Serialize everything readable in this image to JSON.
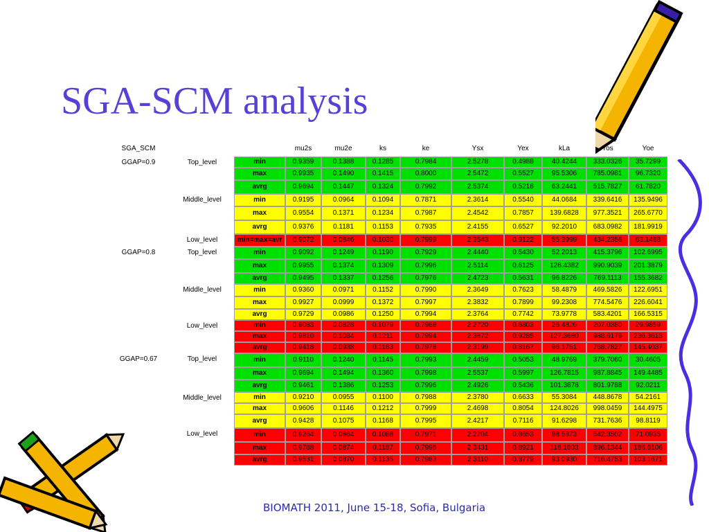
{
  "title": "SGA-SCM analysis",
  "footer": "BIOMATH 2011, June 15-18, Sofia, Bulgaria",
  "table": {
    "corner": "SGA_SCM",
    "columns": [
      "mu2s",
      "mu2e",
      "ks",
      "ke",
      "Ysx",
      "Yex",
      "kLa",
      "Yos",
      "Yoe"
    ],
    "colors": {
      "green": "#00e000",
      "yellow": "#ffff00",
      "red": "#ff0000"
    },
    "groups": [
      {
        "label": "GGAP=0.9",
        "levels": [
          {
            "name": "Top_level",
            "color": "green",
            "rows": [
              {
                "stat": "min",
                "values": [
                  "0.9359",
                  "0.1388",
                  "0.1285",
                  "0.7984",
                  "2.5278",
                  "0.4988",
                  "40.4244",
                  "333.0326",
                  "35.7299"
                ]
              },
              {
                "stat": "max",
                "values": [
                  "0.9935",
                  "0.1490",
                  "0.1415",
                  "0.8000",
                  "2.5472",
                  "0.5527",
                  "95.5306",
                  "785.0981",
                  "96.7320"
                ]
              },
              {
                "stat": "avrg",
                "values": [
                  "0.9694",
                  "0.1447",
                  "0.1324",
                  "0.7992",
                  "2.5374",
                  "0.5218",
                  "63.2441",
                  "515.7827",
                  "61.7820"
                ]
              }
            ]
          },
          {
            "name": "Middle_level",
            "color": "yellow",
            "rows": [
              {
                "stat": "min",
                "values": [
                  "0.9195",
                  "0.0964",
                  "0.1094",
                  "0.7871",
                  "2.3614",
                  "0.5540",
                  "44.0684",
                  "339.6416",
                  "135.9496"
                ]
              },
              {
                "stat": "max",
                "values": [
                  "0.9554",
                  "0.1371",
                  "0.1234",
                  "0.7987",
                  "2.4542",
                  "0.7857",
                  "139.6828",
                  "977.3521",
                  "265.6770"
                ]
              },
              {
                "stat": "avrg",
                "values": [
                  "0.9376",
                  "0.1181",
                  "0.1153",
                  "0.7935",
                  "2.4155",
                  "0.6527",
                  "92.2010",
                  "683.0982",
                  "181.9919"
                ]
              }
            ]
          },
          {
            "name": "Low_level",
            "color": "red",
            "rows": [
              {
                "stat": "min=max=avr",
                "values": [
                  "0.9072",
                  "0.0846",
                  "0.1030",
                  "0.7999",
                  "2.3543",
                  "0.9122",
                  "55.3999",
                  "434.2356",
                  "63.1468"
                ]
              }
            ]
          }
        ]
      },
      {
        "label": "GGAP=0.8",
        "levels": [
          {
            "name": "Top_level",
            "color": "green",
            "rows": [
              {
                "stat": "min",
                "values": [
                  "0.9092",
                  "0.1249",
                  "0.1190",
                  "0.7929",
                  "2.4440",
                  "0.5430",
                  "52.2013",
                  "415.3796",
                  "102.6995"
                ]
              },
              {
                "stat": "max",
                "values": [
                  "0.9955",
                  "0.1374",
                  "0.1309",
                  "0.7996",
                  "2.5114",
                  "0.6125",
                  "126.4382",
                  "990.9039",
                  "201.3879"
                ]
              },
              {
                "stat": "avrg",
                "values": [
                  "0.9495",
                  "0.1337",
                  "0.1256",
                  "0.7976",
                  "2.4723",
                  "0.5631",
                  "96.8226",
                  "769.1113",
                  "155.3682"
                ]
              }
            ]
          },
          {
            "name": "Middle_level",
            "color": "yellow",
            "rows": [
              {
                "stat": "min",
                "values": [
                  "0.9360",
                  "0.0971",
                  "0.1152",
                  "0.7990",
                  "2.3649",
                  "0.7623",
                  "58.4879",
                  "469.5826",
                  "122.6951"
                ]
              },
              {
                "stat": "max",
                "values": [
                  "0.9927",
                  "0.0999",
                  "0.1372",
                  "0.7997",
                  "2.3832",
                  "0.7899",
                  "99.2308",
                  "774.5476",
                  "226.6041"
                ]
              },
              {
                "stat": "avrg",
                "values": [
                  "0.9729",
                  "0.0986",
                  "0.1250",
                  "0.7994",
                  "2.3764",
                  "0.7742",
                  "73.9778",
                  "583.4201",
                  "166.5315"
                ]
              }
            ]
          },
          {
            "name": "Low_level",
            "color": "red",
            "rows": [
              {
                "stat": "min",
                "values": [
                  "0.9083",
                  "0.0828",
                  "0.1079",
                  "0.7968",
                  "2.2720",
                  "0.6803",
                  "26.4826",
                  "207.0380",
                  "29.9859"
                ]
              },
              {
                "stat": "max",
                "values": [
                  "0.9810",
                  "0.1084",
                  "0.1211",
                  "0.7994",
                  "2.3872",
                  "0.9285",
                  "127.3680",
                  "988.6179",
                  "236.3613"
                ]
              },
              {
                "stat": "avrg",
                "values": [
                  "0.9418",
                  "0.0938",
                  "0.1163",
                  "0.7978",
                  "2.3199",
                  "0.8167",
                  "96.1751",
                  "768.7827",
                  "145.4037"
                ]
              }
            ]
          }
        ]
      },
      {
        "label": "GGAP=0.67",
        "levels": [
          {
            "name": "Top_level",
            "color": "green",
            "rows": [
              {
                "stat": "min",
                "values": [
                  "0.9110",
                  "0.1240",
                  "0.1145",
                  "0.7993",
                  "2.4459",
                  "0.5053",
                  "48.9769",
                  "379.7060",
                  "30.4605"
                ]
              },
              {
                "stat": "max",
                "values": [
                  "0.9694",
                  "0.1494",
                  "0.1360",
                  "0.7998",
                  "2.5537",
                  "0.5997",
                  "126.7815",
                  "987.8845",
                  "149.4485"
                ]
              },
              {
                "stat": "avrg",
                "values": [
                  "0.9461",
                  "0.1386",
                  "0.1253",
                  "0.7996",
                  "2.4926",
                  "0.5436",
                  "101.3878",
                  "801.9788",
                  "92.0211"
                ]
              }
            ]
          },
          {
            "name": "Middle_level",
            "color": "yellow",
            "rows": [
              {
                "stat": "min",
                "values": [
                  "0.9210",
                  "0.0955",
                  "0.1100",
                  "0.7988",
                  "2.3780",
                  "0.6633",
                  "55.3084",
                  "448.8678",
                  "54.2161"
                ]
              },
              {
                "stat": "max",
                "values": [
                  "0.9606",
                  "0.1146",
                  "0.1212",
                  "0.7999",
                  "2.4698",
                  "0.8054",
                  "124.8026",
                  "998.0459",
                  "144.4975"
                ]
              },
              {
                "stat": "avrg",
                "values": [
                  "0.9428",
                  "0.1075",
                  "0.1168",
                  "0.7995",
                  "2.4217",
                  "0.7116",
                  "91.6298",
                  "731.7636",
                  "98.8119"
                ]
              }
            ]
          },
          {
            "name": "Low_level",
            "color": "red",
            "rows": [
              {
                "stat": "min",
                "values": [
                  "0.9264",
                  "0.0864",
                  "0.1088",
                  "0.7971",
                  "2.2704",
                  "0.8653",
                  "88.5873",
                  "542.3502",
                  "71.0935"
                ]
              },
              {
                "stat": "max",
                "values": [
                  "0.9788",
                  "0.0874",
                  "0.1187",
                  "0.7996",
                  "2.3431",
                  "0.8921",
                  "118.1603",
                  "896.1344",
                  "186.6106"
                ]
              },
              {
                "stat": "avrg",
                "values": [
                  "0.9531",
                  "0.0870",
                  "0.1135",
                  "0.7983",
                  "2.3110",
                  "0.8779",
                  "93.0930",
                  "716.4753",
                  "103.1671"
                ]
              }
            ]
          }
        ]
      }
    ]
  }
}
